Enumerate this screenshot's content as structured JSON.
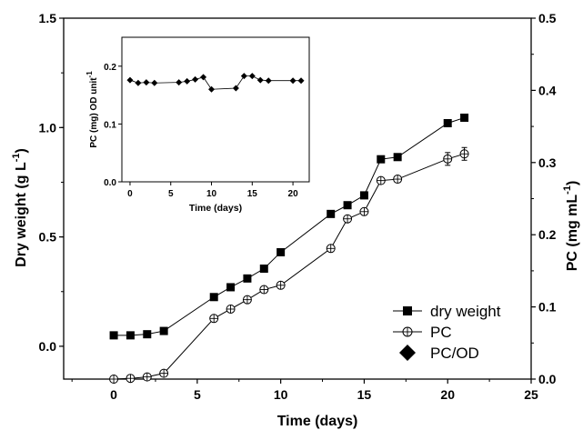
{
  "chart_data": [
    {
      "type": "line",
      "x_label": "Time (days)",
      "y_left_label_main": "Dry weight (g L",
      "y_left_label_sup": "-1",
      "y_left_label_close": ")",
      "y_right_label_main": "PC (mg mL",
      "y_right_label_sup": "-1",
      "y_right_label_close": ")",
      "xlim": [
        -3,
        25
      ],
      "ylim_left": [
        -0.15,
        1.5
      ],
      "ylim_right": [
        0.0,
        0.5
      ],
      "x_ticks": [
        0,
        5,
        10,
        15,
        20,
        25
      ],
      "x_tick_labels": [
        "0",
        "5",
        "10",
        "15",
        "20",
        "25"
      ],
      "y_left_ticks": [
        0.0,
        0.5,
        1.0,
        1.5
      ],
      "y_left_tick_labels": [
        "0.0",
        "0.5",
        "1.0",
        "1.5"
      ],
      "y_right_ticks": [
        0.0,
        0.1,
        0.2,
        0.3,
        0.4,
        0.5
      ],
      "y_right_tick_labels": [
        "0.0",
        "0.1",
        "0.2",
        "0.3",
        "0.4",
        "0.5"
      ],
      "legend_position": "bottom-right",
      "series": [
        {
          "name": "dry weight",
          "axis": "left",
          "marker": "filled-square",
          "x": [
            0,
            1,
            2,
            3,
            6,
            7,
            8,
            9,
            10,
            13,
            14,
            15,
            16,
            17,
            20,
            21
          ],
          "y": [
            0.05,
            0.05,
            0.055,
            0.07,
            0.225,
            0.27,
            0.31,
            0.355,
            0.43,
            0.605,
            0.645,
            0.69,
            0.855,
            0.865,
            1.02,
            1.045
          ]
        },
        {
          "name": "PC",
          "axis": "right",
          "marker": "open-circle",
          "x": [
            0,
            1,
            2,
            3,
            6,
            7,
            8,
            9,
            10,
            13,
            14,
            15,
            16,
            17,
            20,
            21
          ],
          "y": [
            0.0,
            0.001,
            0.003,
            0.008,
            0.084,
            0.097,
            0.11,
            0.124,
            0.13,
            0.181,
            0.222,
            0.232,
            0.275,
            0.277,
            0.305,
            0.312
          ]
        },
        {
          "name": "PC/OD",
          "axis": "inset",
          "marker": "filled-diamond",
          "x": [],
          "y": []
        }
      ]
    },
    {
      "type": "line",
      "x_label": "Time (days)",
      "y_label": "PC (mg)  OD unit",
      "y_label_sup": "-1",
      "xlim": [
        -1,
        22
      ],
      "ylim": [
        0.0,
        0.25
      ],
      "x_ticks": [
        0,
        5,
        10,
        15,
        20
      ],
      "x_tick_labels": [
        "0",
        "5",
        "10",
        "15",
        "20"
      ],
      "y_ticks": [
        0.0,
        0.1,
        0.2
      ],
      "y_tick_labels": [
        "0.0",
        "0.1",
        "0.2"
      ],
      "series": [
        {
          "marker": "filled-diamond",
          "x": [
            0,
            1,
            2,
            3,
            6,
            7,
            8,
            9,
            10,
            13,
            14,
            15,
            16,
            17,
            20,
            21
          ],
          "y": [
            0.176,
            0.171,
            0.172,
            0.171,
            0.172,
            0.174,
            0.177,
            0.181,
            0.16,
            0.162,
            0.183,
            0.183,
            0.176,
            0.175,
            0.175,
            0.175
          ]
        }
      ]
    }
  ]
}
